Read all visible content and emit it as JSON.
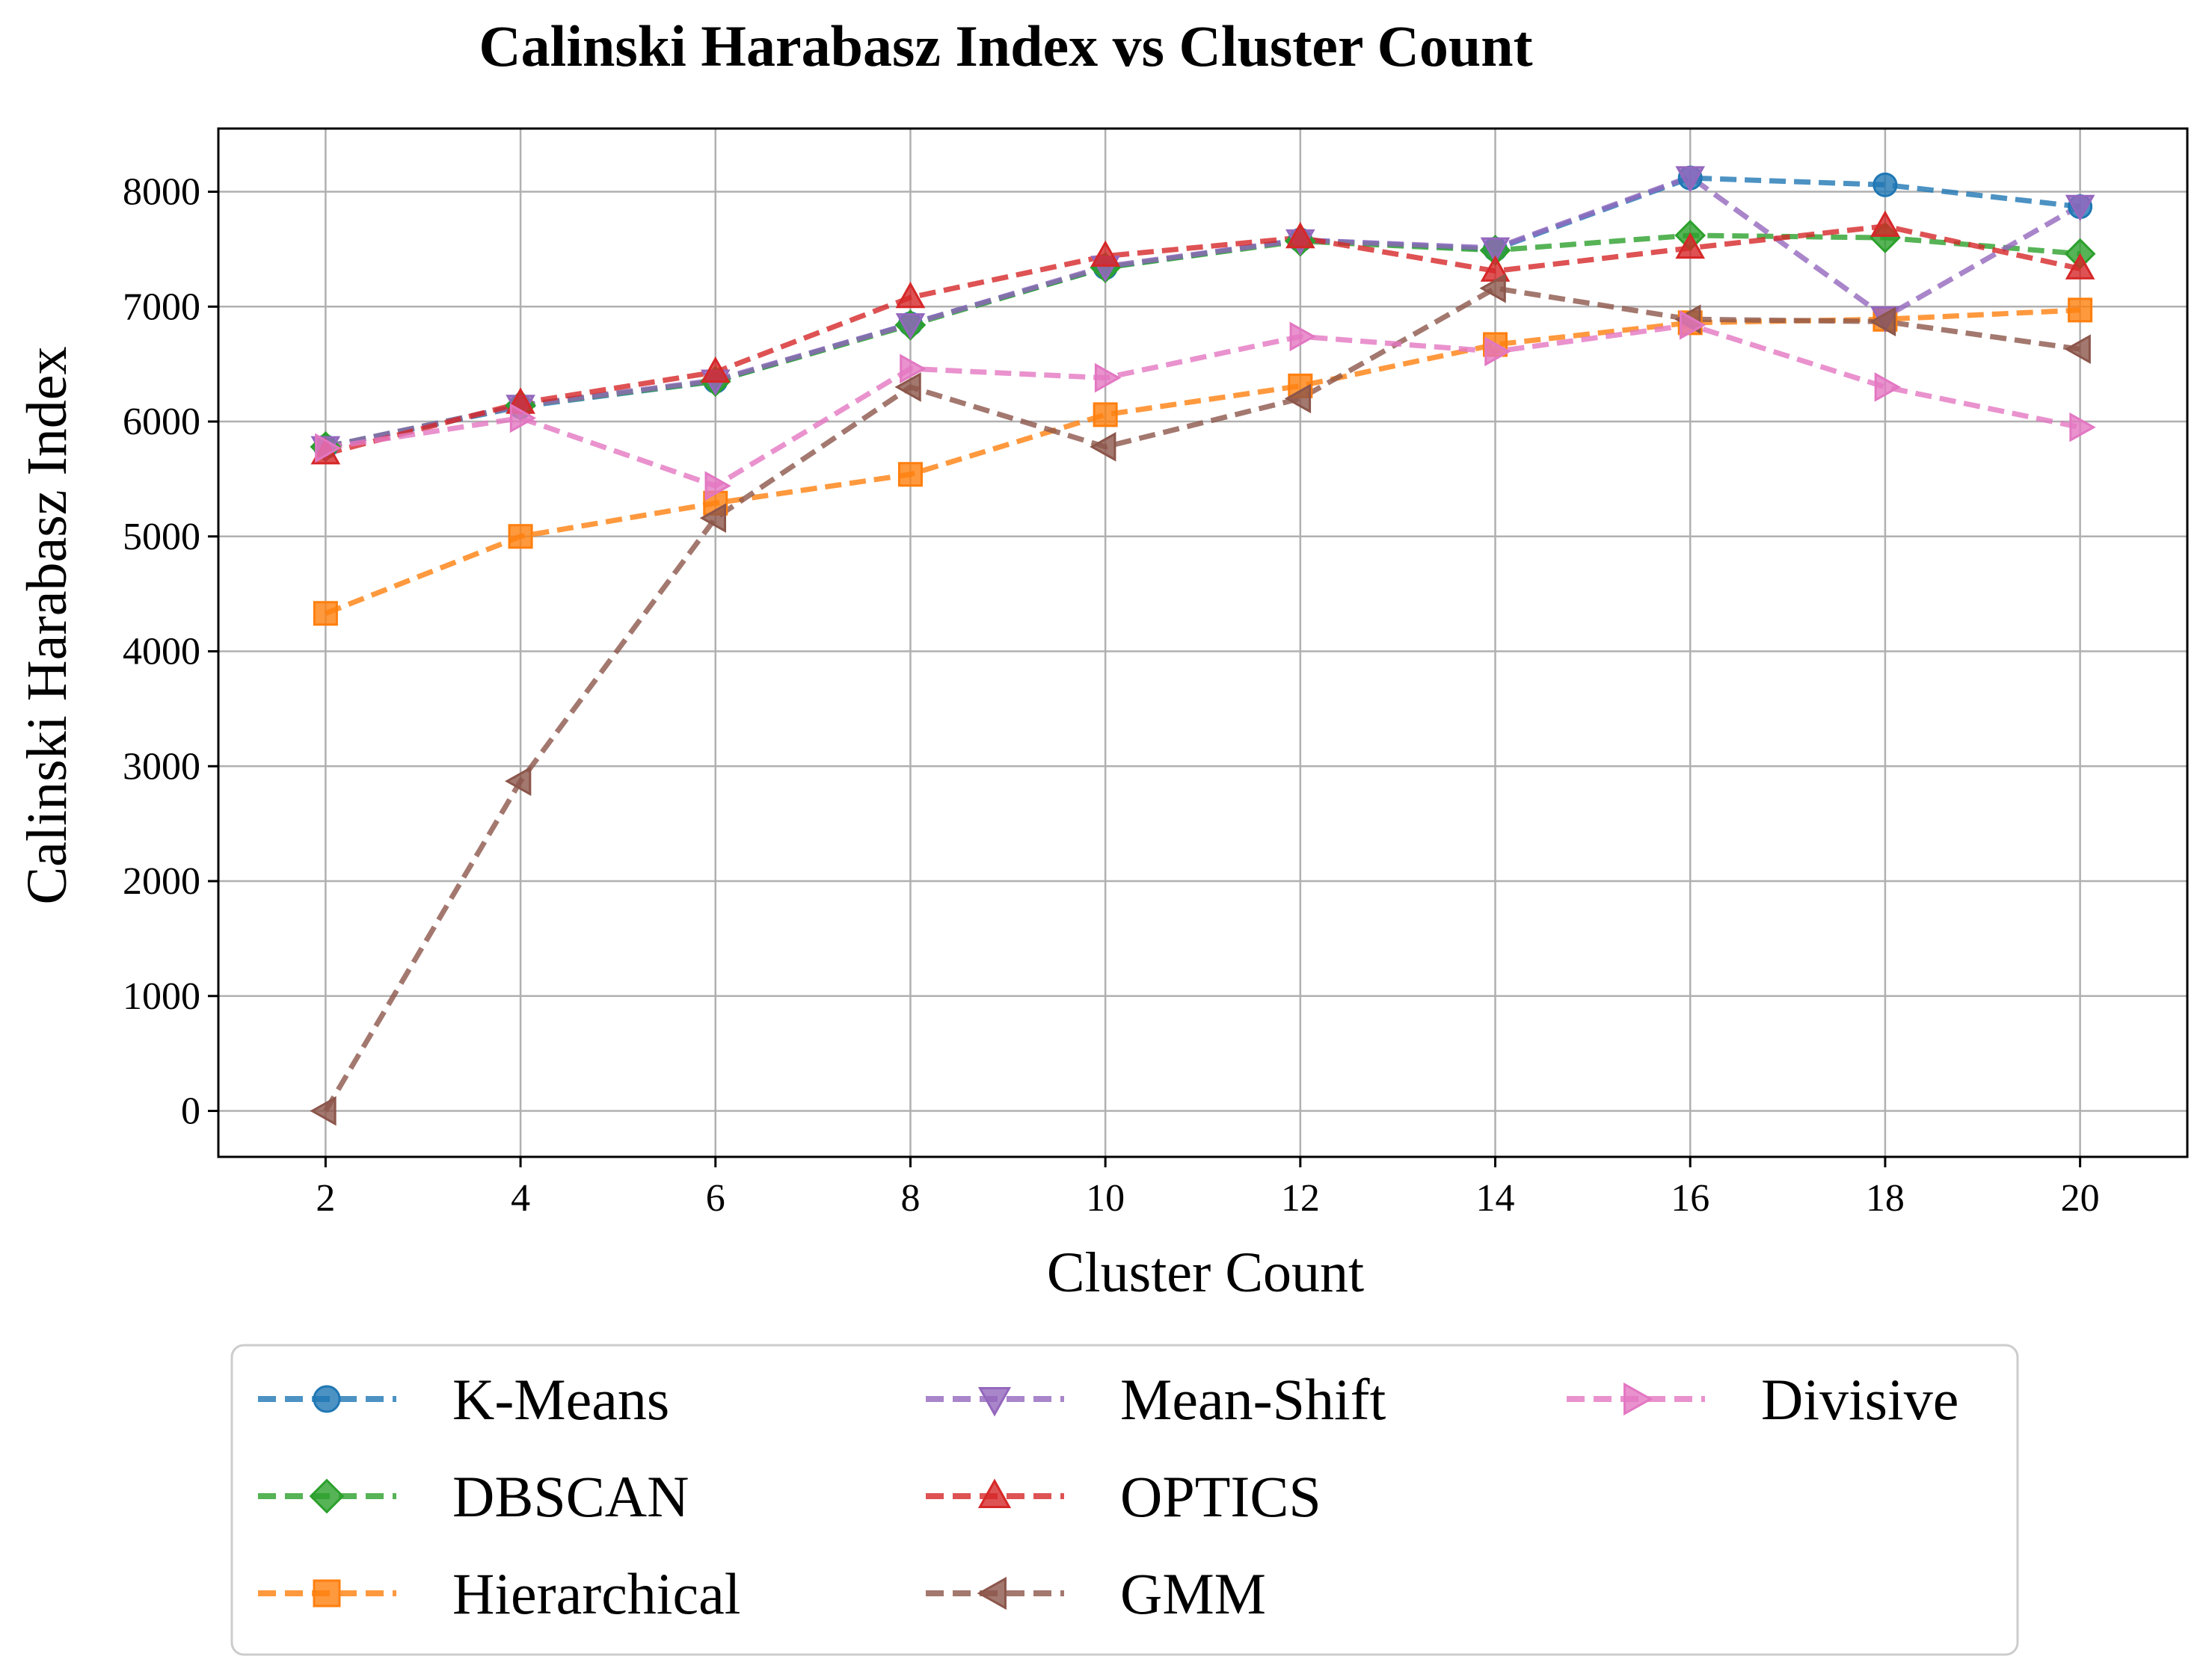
{
  "chart_data": {
    "type": "line",
    "title": "Calinski Harabasz Index vs Cluster Count",
    "xlabel": "Cluster Count",
    "ylabel": "Calinski Harabasz Index",
    "x": [
      2,
      4,
      6,
      8,
      10,
      12,
      14,
      16,
      18,
      20
    ],
    "xlim": [
      0.9,
      21.1
    ],
    "ylim": [
      -400,
      8550
    ],
    "xticks": [
      "2",
      "4",
      "6",
      "8",
      "10",
      "12",
      "14",
      "16",
      "18",
      "20"
    ],
    "yticks": [
      "0",
      "1000",
      "2000",
      "3000",
      "4000",
      "5000",
      "6000",
      "7000",
      "8000"
    ],
    "grid": true,
    "legend_position": "below",
    "series": [
      {
        "name": "K-Means",
        "color": "#1f77b4",
        "marker": "circle",
        "values": [
          5780,
          6130,
          6350,
          6850,
          7340,
          7580,
          7500,
          8120,
          8060,
          7870
        ]
      },
      {
        "name": "DBSCAN",
        "color": "#2ca02c",
        "marker": "diamond",
        "values": [
          5780,
          6140,
          6350,
          6840,
          7340,
          7570,
          7490,
          7620,
          7600,
          7460
        ]
      },
      {
        "name": "Hierarchical",
        "color": "#ff7f0e",
        "marker": "square",
        "values": [
          4330,
          5000,
          5290,
          5540,
          6060,
          6310,
          6670,
          6860,
          6890,
          6970
        ]
      },
      {
        "name": "Mean-Shift",
        "color": "#9467bd",
        "marker": "triangle-down",
        "values": [
          5780,
          6140,
          6360,
          6850,
          7350,
          7580,
          7510,
          8130,
          6910,
          7880
        ]
      },
      {
        "name": "OPTICS",
        "color": "#d62728",
        "marker": "triangle-up",
        "values": [
          5720,
          6160,
          6430,
          7080,
          7440,
          7600,
          7310,
          7510,
          7700,
          7330
        ]
      },
      {
        "name": "GMM",
        "color": "#8c564b",
        "marker": "triangle-left",
        "values": [
          0,
          2870,
          5160,
          6300,
          5780,
          6200,
          7160,
          6890,
          6870,
          6630
        ]
      },
      {
        "name": "Divisive",
        "color": "#e377c2",
        "marker": "triangle-right",
        "values": [
          5770,
          6030,
          5440,
          6460,
          6380,
          6740,
          6610,
          6840,
          6300,
          5950
        ]
      }
    ]
  }
}
